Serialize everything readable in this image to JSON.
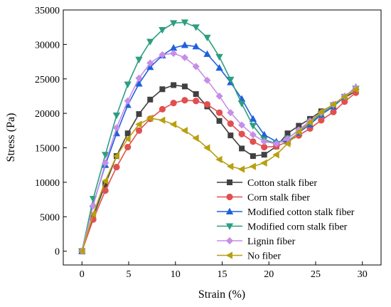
{
  "chart_data": {
    "type": "line",
    "xlabel": "Strain (%)",
    "ylabel": "Stress (Pa)",
    "xlim": [
      -2,
      32
    ],
    "ylim": [
      -2000,
      35000
    ],
    "xticks": [
      0,
      5,
      10,
      15,
      20,
      25,
      30
    ],
    "yticks": [
      0,
      5000,
      10000,
      15000,
      20000,
      25000,
      30000,
      35000
    ],
    "grid": false,
    "legend_position": "bottom-right",
    "series": [
      {
        "name": "Cotton stalk fiber",
        "color": "#404040",
        "marker": "square",
        "points": [
          [
            0,
            0
          ],
          [
            1.2,
            5000
          ],
          [
            2.5,
            9700
          ],
          [
            3.7,
            13800
          ],
          [
            4.9,
            17100
          ],
          [
            6.1,
            19900
          ],
          [
            7.3,
            22000
          ],
          [
            8.6,
            23500
          ],
          [
            9.8,
            24100
          ],
          [
            11.0,
            23900
          ],
          [
            12.2,
            22800
          ],
          [
            13.4,
            21000
          ],
          [
            14.7,
            18900
          ],
          [
            15.9,
            16800
          ],
          [
            17.1,
            14900
          ],
          [
            18.3,
            13800
          ],
          [
            19.5,
            14000
          ],
          [
            20.8,
            15200
          ],
          [
            22.0,
            17100
          ],
          [
            23.2,
            18200
          ],
          [
            24.4,
            19200
          ],
          [
            25.6,
            20300
          ],
          [
            26.9,
            21200
          ],
          [
            28.1,
            22300
          ],
          [
            29.3,
            23200
          ]
        ]
      },
      {
        "name": "Corn stalk fiber",
        "color": "#e05050",
        "marker": "circle",
        "points": [
          [
            0,
            0
          ],
          [
            1.2,
            4600
          ],
          [
            2.5,
            8800
          ],
          [
            3.7,
            12200
          ],
          [
            4.9,
            15100
          ],
          [
            6.1,
            17500
          ],
          [
            7.3,
            19200
          ],
          [
            8.6,
            20600
          ],
          [
            9.8,
            21500
          ],
          [
            11.0,
            21900
          ],
          [
            12.2,
            21800
          ],
          [
            13.4,
            21300
          ],
          [
            14.7,
            20100
          ],
          [
            15.9,
            18500
          ],
          [
            17.1,
            17000
          ],
          [
            18.3,
            15900
          ],
          [
            19.5,
            15100
          ],
          [
            20.8,
            15200
          ],
          [
            22.0,
            15900
          ],
          [
            23.2,
            16800
          ],
          [
            24.4,
            17800
          ],
          [
            25.6,
            19000
          ],
          [
            26.9,
            20200
          ],
          [
            28.1,
            21700
          ],
          [
            29.3,
            23000
          ]
        ]
      },
      {
        "name": "Modified cotton stalk fiber",
        "color": "#2060dd",
        "marker": "triangle-up",
        "points": [
          [
            0,
            0
          ],
          [
            1.2,
            6800
          ],
          [
            2.5,
            12500
          ],
          [
            3.7,
            17100
          ],
          [
            4.9,
            21200
          ],
          [
            6.1,
            24300
          ],
          [
            7.3,
            26700
          ],
          [
            8.6,
            28400
          ],
          [
            9.8,
            29500
          ],
          [
            11.0,
            29900
          ],
          [
            12.2,
            29700
          ],
          [
            13.4,
            28600
          ],
          [
            14.7,
            26600
          ],
          [
            15.9,
            24500
          ],
          [
            17.1,
            22100
          ],
          [
            18.3,
            19200
          ],
          [
            19.5,
            16900
          ],
          [
            20.8,
            15900
          ],
          [
            22.0,
            15900
          ],
          [
            23.2,
            17200
          ],
          [
            24.4,
            18400
          ],
          [
            25.6,
            19800
          ],
          [
            26.9,
            21000
          ],
          [
            28.1,
            22400
          ],
          [
            29.3,
            23800
          ]
        ]
      },
      {
        "name": "Modified corn stalk fiber",
        "color": "#2e9e80",
        "marker": "triangle-down",
        "points": [
          [
            0,
            0
          ],
          [
            1.2,
            7600
          ],
          [
            2.5,
            14000
          ],
          [
            3.7,
            19700
          ],
          [
            4.9,
            24200
          ],
          [
            6.1,
            27800
          ],
          [
            7.3,
            30400
          ],
          [
            8.6,
            32100
          ],
          [
            9.8,
            33100
          ],
          [
            11.0,
            33200
          ],
          [
            12.2,
            32500
          ],
          [
            13.4,
            31000
          ],
          [
            14.7,
            28200
          ],
          [
            15.9,
            24900
          ],
          [
            17.1,
            21400
          ],
          [
            18.3,
            18200
          ],
          [
            19.5,
            16200
          ],
          [
            20.8,
            15600
          ],
          [
            22.0,
            16400
          ],
          [
            23.2,
            17500
          ],
          [
            24.4,
            18700
          ],
          [
            25.6,
            19900
          ],
          [
            26.9,
            21200
          ],
          [
            28.1,
            22400
          ],
          [
            29.3,
            23600
          ]
        ]
      },
      {
        "name": "Lignin fiber",
        "color": "#c58ee8",
        "marker": "diamond",
        "points": [
          [
            0,
            0
          ],
          [
            1.2,
            6600
          ],
          [
            2.5,
            12800
          ],
          [
            3.7,
            17900
          ],
          [
            4.9,
            21800
          ],
          [
            6.1,
            25100
          ],
          [
            7.3,
            27300
          ],
          [
            8.6,
            28500
          ],
          [
            9.8,
            28700
          ],
          [
            11.0,
            28100
          ],
          [
            12.2,
            26800
          ],
          [
            13.4,
            24800
          ],
          [
            14.7,
            22500
          ],
          [
            15.9,
            20100
          ],
          [
            17.1,
            18300
          ],
          [
            18.3,
            16900
          ],
          [
            19.5,
            15900
          ],
          [
            20.8,
            15600
          ],
          [
            22.0,
            16300
          ],
          [
            23.2,
            17600
          ],
          [
            24.4,
            18900
          ],
          [
            25.6,
            20100
          ],
          [
            26.9,
            21300
          ],
          [
            28.1,
            22500
          ],
          [
            29.3,
            23700
          ]
        ]
      },
      {
        "name": "No fiber",
        "color": "#b8a010",
        "marker": "triangle-left",
        "points": [
          [
            0,
            0
          ],
          [
            1.2,
            5400
          ],
          [
            2.5,
            10200
          ],
          [
            3.7,
            13800
          ],
          [
            4.9,
            16300
          ],
          [
            6.1,
            18400
          ],
          [
            7.3,
            19300
          ],
          [
            8.6,
            19000
          ],
          [
            9.8,
            18400
          ],
          [
            11.0,
            17500
          ],
          [
            12.2,
            16400
          ],
          [
            13.4,
            15000
          ],
          [
            14.7,
            13300
          ],
          [
            15.9,
            12300
          ],
          [
            17.1,
            11900
          ],
          [
            18.3,
            12300
          ],
          [
            19.5,
            12800
          ],
          [
            20.8,
            14000
          ],
          [
            22.0,
            15600
          ],
          [
            23.2,
            17300
          ],
          [
            24.4,
            18700
          ],
          [
            25.6,
            20200
          ],
          [
            26.9,
            21300
          ],
          [
            28.1,
            22400
          ],
          [
            29.3,
            23500
          ]
        ]
      }
    ]
  }
}
